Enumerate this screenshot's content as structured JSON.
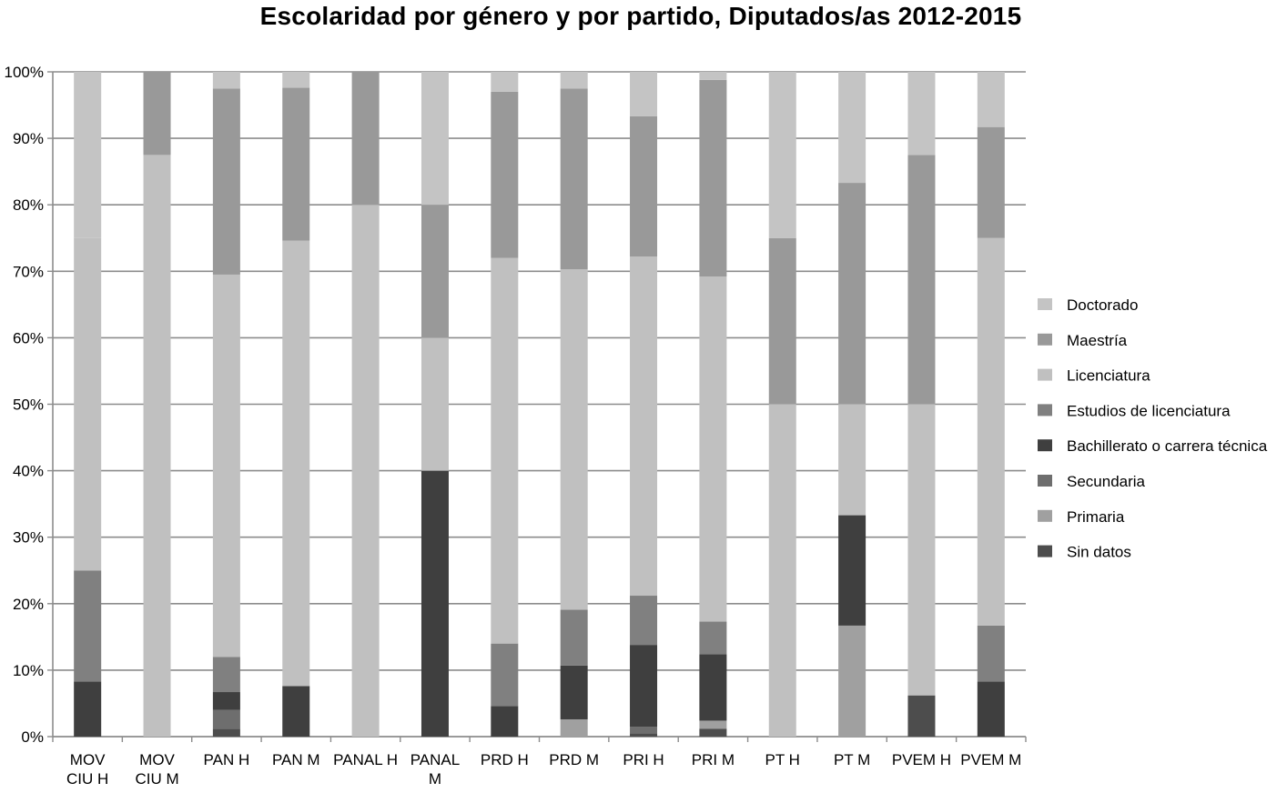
{
  "chart_data": {
    "type": "bar",
    "stacked": true,
    "percent": true,
    "title": "Escolaridad por género y por partido, Diputados/as 2012-2015",
    "xlabel": "",
    "ylabel": "",
    "ylim": [
      0,
      100
    ],
    "yticks": [
      "0%",
      "10%",
      "20%",
      "30%",
      "40%",
      "50%",
      "60%",
      "70%",
      "80%",
      "90%",
      "100%"
    ],
    "grid": true,
    "legend_position": "right",
    "categories": [
      [
        "MOV",
        "CIU H"
      ],
      [
        "MOV",
        "CIU M"
      ],
      [
        "PAN H"
      ],
      [
        "PAN M"
      ],
      [
        "PANAL H"
      ],
      [
        "PANAL",
        "M"
      ],
      [
        "PRD H"
      ],
      [
        "PRD M"
      ],
      [
        "PRI H"
      ],
      [
        "PRI M"
      ],
      [
        "PT H"
      ],
      [
        "PT M"
      ],
      [
        "PVEM H"
      ],
      [
        "PVEM M"
      ]
    ],
    "series": [
      {
        "name": "Sin datos",
        "color": "#4d4d4d",
        "values": [
          0,
          0,
          1.2,
          0,
          0,
          0,
          0,
          0,
          0.5,
          1.2,
          0,
          0,
          6.2,
          0
        ]
      },
      {
        "name": "Primaria",
        "color": "#a0a0a0",
        "values": [
          0,
          0,
          0,
          0,
          0,
          0,
          0,
          2.6,
          0,
          1.2,
          0,
          16.7,
          0,
          0
        ]
      },
      {
        "name": "Secundaria",
        "color": "#6e6e6e",
        "values": [
          0,
          0,
          2.8,
          0,
          0,
          0,
          0,
          0,
          1.0,
          0,
          0,
          0,
          0,
          0
        ]
      },
      {
        "name": "Bachillerato o carrera  técnica",
        "color": "#3f3f3f",
        "values": [
          8.3,
          0,
          2.7,
          7.6,
          0,
          40,
          4.6,
          8.1,
          12.3,
          10.0,
          0,
          16.6,
          0,
          8.3
        ]
      },
      {
        "name": "Estudios de licenciatura",
        "color": "#808080",
        "values": [
          16.7,
          0,
          5.3,
          0,
          0,
          0,
          9.4,
          8.4,
          7.4,
          4.9,
          0,
          0,
          0,
          8.4
        ]
      },
      {
        "name": "Licenciatura",
        "color": "#c0c0c0",
        "values": [
          50,
          87.5,
          57.5,
          67,
          80,
          20,
          58,
          51.2,
          51,
          51.9,
          50,
          16.7,
          43.8,
          58.3
        ]
      },
      {
        "name": "Maestría",
        "color": "#999999",
        "values": [
          0,
          12.5,
          28,
          23,
          20,
          20,
          25,
          27.2,
          21.1,
          29.6,
          25,
          33.3,
          37.5,
          16.7
        ]
      },
      {
        "name": "Doctorado",
        "color": "#c4c4c4",
        "values": [
          25,
          0,
          2.5,
          2.4,
          0,
          20,
          3,
          2.5,
          6.7,
          1.2,
          25,
          16.7,
          12.5,
          8.3
        ]
      }
    ]
  }
}
